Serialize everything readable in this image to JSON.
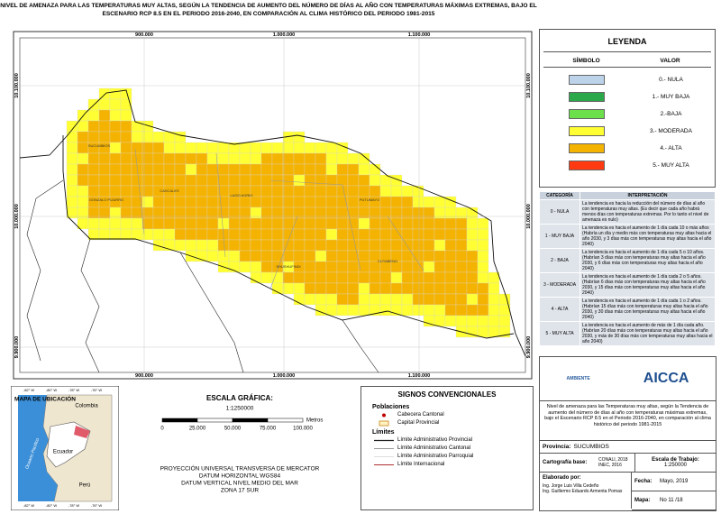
{
  "title": "NIVEL DE AMENAZA PARA LAS TEMPERATURAS MUY ALTAS, SEGÚN LA TENDENCIA DE AUMENTO DEL NÚMERO DE DÍAS AL AÑO CON TEMPERATURAS MÁXIMAS EXTREMAS, BAJO EL ESCENARIO RCP 8.5 EN EL PERIODO 2016-2040, EN COMPARACIÓN AL CLIMA HISTÓRICO DEL PERIODO 1981-2015",
  "map": {
    "x_coords": [
      "900.000",
      "1.000.000",
      "1.100.000"
    ],
    "y_coords": [
      "10.100.000",
      "10.000.000",
      "9.900.000"
    ],
    "cantons": [
      "SUCUMBIOS",
      "GONZALO PIZARRO",
      "CASCALES",
      "LAGO AGRIO",
      "PUTUMAYO",
      "SHUSHUFINDI",
      "CUYABENO"
    ]
  },
  "legend": {
    "title": "LEYENDA",
    "symbol_header": "SÍMBOLO",
    "value_header": "VALOR",
    "items": [
      {
        "label": "0.- NULA",
        "color": "#bcd3ea"
      },
      {
        "label": "1.- MUY BAJA",
        "color": "#2aa84a"
      },
      {
        "label": "2.-BAJA",
        "color": "#6be04a"
      },
      {
        "label": "3.- MODERADA",
        "color": "#ffff33"
      },
      {
        "label": "4.- ALTA",
        "color": "#f5b301"
      },
      {
        "label": "5.- MUY ALTA",
        "color": "#ff3a10"
      }
    ]
  },
  "interpretation": {
    "headers": [
      "CATEGORÍA",
      "INTERPRETACIÓN"
    ],
    "rows": [
      [
        "0 - NULA",
        "La tendencia es hacia la reducción del número de días al año con temperaturas muy altas. (Es decir que cada año habrá menos días con temperaturas extremas. Por lo tanto el nivel de amenaza es nulo)"
      ],
      [
        "1 - MUY BAJA",
        "La tendencia es hacia el aumento de 1 día cada 10 o más años (Habría un día y medio más con temperaturas muy altas hacia el año 2030, y 3 días más con temperaturas muy altas hacia el año 2040)"
      ],
      [
        "2 - BAJA",
        "La tendencia es hacia el aumento de 1 día cada 5 o 10 años. (Habrían 3 días más con temperaturas muy altas hacia el año 2030, y 6 días más con temperaturas muy altas hacia el año 2040)"
      ],
      [
        "3 - MODERADA",
        "La tendencia es hacia el aumento de 1 día cada 2 o 5 años. (Habrían 6 días más con temperaturas muy altas hacia el año 2030, y 15 días más con temperaturas muy altas hacia el año 2040)"
      ],
      [
        "4 - ALTA",
        "La tendencia es hacia el aumento de 1 día cada 1 o 2 años. (Habrían 15 días más con temperaturas muy altas hacia el año 2030, y 30 días más con temperaturas muy altas hacia el año 2040)"
      ],
      [
        "5 - MUY ALTA",
        "La tendencia es hacia el aumento de más de 1 día cada año. (Habrían 20 días más con temperaturas muy altas hacia el año 2030, y más de 30 días más con temperaturas muy altas hacia el año 2040)"
      ]
    ]
  },
  "location_map": {
    "title": "MAPA DE UBICACIÓN",
    "lon_labels": [
      "-82° W",
      "-80° W",
      "-78° W",
      "-76° W"
    ],
    "countries": [
      "Colombia",
      "Ecuador",
      "Perú"
    ],
    "ocean": "Oceano Pacifico"
  },
  "scale": {
    "title": "ESCALA GRÁFICA:",
    "ratio": "1:1250000",
    "ticks": [
      "0",
      "25.000",
      "50.000",
      "75.000",
      "100.000"
    ],
    "unit": "Metros",
    "projection": [
      "PROYECCIÓN UNIVERSAL TRANSVERSA DE MERCATOR",
      "DATUM HORIZONTAL WGS84",
      "DATUM VERTICAL NIVEL MEDIO DEL MAR",
      "ZONA 17 SUR"
    ]
  },
  "signs": {
    "title": "SIGNOS CONVENCIONALES",
    "populations_header": "Poblaciones",
    "populations": [
      "Cabecera Cantonal",
      "Capital Provincial"
    ],
    "limits_header": "Límites",
    "limits": [
      "Límite Administrativo Provincial",
      "Límite Administrativo Cantonal",
      "Límite Administrativo Parroquial",
      "Límite Internacional"
    ]
  },
  "info": {
    "logos": [
      "AMBIENTE",
      "AICCA"
    ],
    "description": "Nivel de amenaza para las Temperaturas muy altas, según la Tendencia de aumento del número de días al año con temperaturas máximas extremas, bajo el Escenario RCP 8.5 en el Periodo 2016-2040, en comparación al clima histórico del periodo 1981-2015",
    "province_label": "Provincia:",
    "province": "SUCUMBIOS",
    "base_label": "Cartografía base:",
    "base": [
      "CONALI, 2018",
      "INEC, 2016"
    ],
    "work_scale_label": "Escala de Trabajo:",
    "work_scale": "1:250000",
    "author_label": "Elaborado por:",
    "authors": [
      "Ing. Jorge Luis Villa Cedeño",
      "Ing. Guillermo Eduardo Armenta Pomas"
    ],
    "date_label": "Fecha:",
    "date": "Mayo, 2019",
    "map_label": "Mapa:",
    "map_number": "No 11 /18"
  }
}
